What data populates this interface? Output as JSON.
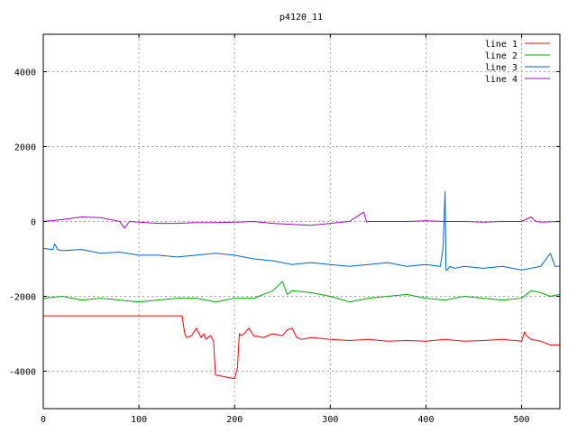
{
  "chart_data": {
    "type": "line",
    "title": "p4120_11",
    "xlabel": "",
    "ylabel": "",
    "xlim": [
      0,
      540
    ],
    "ylim": [
      -5000,
      5000
    ],
    "xticks": [
      0,
      100,
      200,
      300,
      400,
      500
    ],
    "yticks": [
      -4000,
      -2000,
      0,
      2000,
      4000
    ],
    "grid": true,
    "legend_position": "top-right",
    "series": [
      {
        "name": "line 1",
        "color": "#ff0000",
        "x": [
          0,
          145,
          148,
          150,
          155,
          160,
          165,
          168,
          170,
          172,
          175,
          178,
          180,
          190,
          200,
          203,
          205,
          207,
          210,
          215,
          220,
          230,
          240,
          250,
          255,
          260,
          265,
          270,
          280,
          300,
          320,
          340,
          360,
          380,
          400,
          420,
          440,
          460,
          480,
          500,
          503,
          505,
          510,
          520,
          530,
          540
        ],
        "y": [
          -2520,
          -2520,
          -3000,
          -3100,
          -3050,
          -2850,
          -3100,
          -3000,
          -3150,
          -3100,
          -3050,
          -3200,
          -4100,
          -4150,
          -4200,
          -3900,
          -3000,
          -3050,
          -3000,
          -2850,
          -3050,
          -3100,
          -3000,
          -3050,
          -2900,
          -2850,
          -3100,
          -3150,
          -3100,
          -3150,
          -3180,
          -3150,
          -3200,
          -3180,
          -3200,
          -3150,
          -3200,
          -3180,
          -3150,
          -3200,
          -2950,
          -3050,
          -3150,
          -3200,
          -3300,
          -3300
        ]
      },
      {
        "name": "line 2",
        "color": "#00aa00",
        "x": [
          0,
          20,
          40,
          60,
          80,
          100,
          120,
          140,
          160,
          180,
          200,
          220,
          240,
          250,
          255,
          260,
          280,
          300,
          320,
          340,
          360,
          380,
          400,
          420,
          440,
          460,
          480,
          500,
          510,
          520,
          530,
          540
        ],
        "y": [
          -2050,
          -2000,
          -2100,
          -2050,
          -2100,
          -2150,
          -2100,
          -2050,
          -2050,
          -2150,
          -2050,
          -2050,
          -1850,
          -1600,
          -1950,
          -1850,
          -1900,
          -2000,
          -2150,
          -2050,
          -2000,
          -1950,
          -2050,
          -2100,
          -2000,
          -2050,
          -2100,
          -2050,
          -1850,
          -1900,
          -2000,
          -1950
        ]
      },
      {
        "name": "line 3",
        "color": "#0066cc",
        "x": [
          0,
          10,
          12,
          15,
          20,
          40,
          60,
          80,
          100,
          120,
          140,
          160,
          180,
          200,
          220,
          240,
          260,
          280,
          300,
          320,
          340,
          360,
          380,
          400,
          415,
          418,
          420,
          421,
          422,
          425,
          430,
          440,
          460,
          480,
          500,
          520,
          530,
          535,
          540
        ],
        "y": [
          -720,
          -750,
          -600,
          -750,
          -780,
          -750,
          -850,
          -820,
          -900,
          -900,
          -950,
          -900,
          -850,
          -900,
          -1000,
          -1050,
          -1150,
          -1100,
          -1150,
          -1200,
          -1150,
          -1100,
          -1200,
          -1150,
          -1200,
          -700,
          800,
          -1300,
          -1300,
          -1200,
          -1250,
          -1200,
          -1250,
          -1200,
          -1300,
          -1200,
          -850,
          -1200,
          -1200
        ]
      },
      {
        "name": "line 4",
        "color": "#aa00cc",
        "x": [
          0,
          20,
          40,
          60,
          80,
          85,
          90,
          100,
          120,
          140,
          160,
          180,
          200,
          220,
          240,
          260,
          280,
          300,
          320,
          335,
          338,
          340,
          360,
          380,
          400,
          420,
          440,
          460,
          480,
          500,
          510,
          515,
          520,
          540
        ],
        "y": [
          0,
          50,
          120,
          100,
          0,
          -180,
          0,
          -20,
          -50,
          -50,
          -30,
          -30,
          -20,
          0,
          -50,
          -80,
          -100,
          -50,
          0,
          250,
          -20,
          0,
          0,
          0,
          20,
          0,
          0,
          -20,
          0,
          0,
          120,
          0,
          -20,
          0
        ]
      }
    ]
  }
}
